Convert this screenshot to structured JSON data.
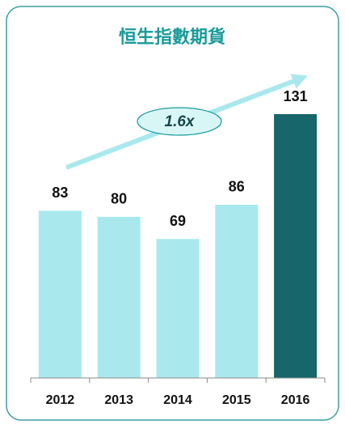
{
  "chart_data": {
    "type": "bar",
    "title": "恒生指數期貨",
    "categories": [
      "2012",
      "2013",
      "2014",
      "2015",
      "2016"
    ],
    "values": [
      83,
      80,
      69,
      86,
      131
    ],
    "colors": [
      "#a9e9ed",
      "#a9e9ed",
      "#a9e9ed",
      "#a9e9ed",
      "#16666b"
    ],
    "annotation": "1.6x"
  }
}
